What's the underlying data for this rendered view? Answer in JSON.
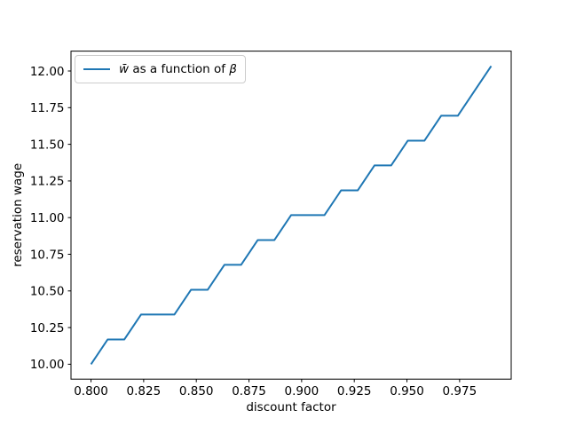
{
  "figure": {
    "background": "#ffffff"
  },
  "chart_data": {
    "type": "line",
    "xlabel": "discount factor",
    "ylabel": "reservation wage",
    "grid": false,
    "line_color": "#1f77b4",
    "axes_color": "#000000",
    "xlim": [
      0.7905,
      0.9995
    ],
    "ylim": [
      9.8983,
      12.1356
    ],
    "x_tick_labels": [
      "0.800",
      "0.825",
      "0.850",
      "0.875",
      "0.900",
      "0.925",
      "0.950",
      "0.975"
    ],
    "y_tick_labels": [
      "10.00",
      "10.25",
      "10.50",
      "10.75",
      "11.00",
      "11.25",
      "11.50",
      "11.75",
      "12.00"
    ],
    "legend": {
      "position": "upper left",
      "entries": [
        {
          "label": "w̄ as a function of β",
          "label_parts": {
            "var1": "w̄",
            "mid": " as a function of ",
            "var2": "β"
          },
          "color": "#1f77b4"
        }
      ]
    },
    "x": [
      0.8,
      0.80792,
      0.81583,
      0.82375,
      0.83167,
      0.83958,
      0.8475,
      0.85542,
      0.86333,
      0.87125,
      0.87917,
      0.88708,
      0.895,
      0.90292,
      0.91083,
      0.91875,
      0.92667,
      0.93458,
      0.9425,
      0.95042,
      0.95833,
      0.96625,
      0.97417,
      0.98208,
      0.99
    ],
    "series": [
      {
        "name": "w̄ as a function of β",
        "values": [
          10.0,
          10.169,
          10.169,
          10.339,
          10.339,
          10.339,
          10.508,
          10.508,
          10.678,
          10.678,
          10.847,
          10.847,
          11.017,
          11.017,
          11.017,
          11.186,
          11.186,
          11.356,
          11.356,
          11.525,
          11.525,
          11.695,
          11.695,
          11.864,
          12.034
        ]
      }
    ]
  }
}
